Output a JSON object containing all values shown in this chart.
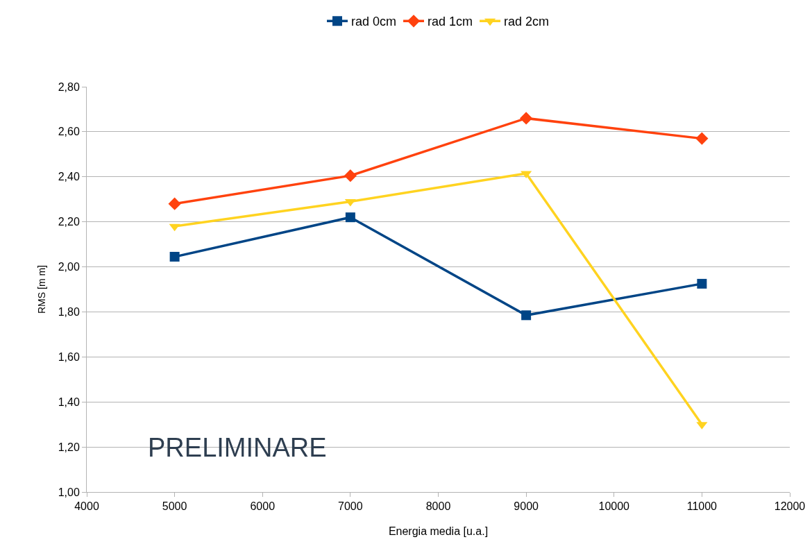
{
  "chart_data": {
    "type": "line",
    "xlabel": "Energia media [u.a.]",
    "ylabel": "RMS [m m]",
    "x": [
      5000,
      7000,
      9000,
      11000
    ],
    "series": [
      {
        "name": "rad 0cm",
        "color": "#004586",
        "marker": "square",
        "values": [
          2.045,
          2.22,
          1.785,
          1.925
        ]
      },
      {
        "name": "rad 1cm",
        "color": "#ff420e",
        "marker": "diamond",
        "values": [
          2.28,
          2.405,
          2.66,
          2.57
        ]
      },
      {
        "name": "rad 2cm",
        "color": "#ffd320",
        "marker": "triangle",
        "values": [
          2.18,
          2.29,
          2.415,
          1.3
        ]
      }
    ],
    "xlim": [
      4000,
      12000
    ],
    "xticks": [
      4000,
      5000,
      6000,
      7000,
      8000,
      9000,
      10000,
      11000,
      12000
    ],
    "ylim": [
      1.0,
      2.8
    ],
    "yticks": [
      {
        "value": 1.0,
        "label": "1,00"
      },
      {
        "value": 1.2,
        "label": "1,20"
      },
      {
        "value": 1.4,
        "label": "1,40"
      },
      {
        "value": 1.6,
        "label": "1,60"
      },
      {
        "value": 1.8,
        "label": "1,80"
      },
      {
        "value": 2.0,
        "label": "2,00"
      },
      {
        "value": 2.2,
        "label": "2,20"
      },
      {
        "value": 2.4,
        "label": "2,40"
      },
      {
        "value": 2.6,
        "label": "2,60"
      },
      {
        "value": 2.8,
        "label": "2,80"
      }
    ],
    "grid": "y",
    "legend": "top",
    "line_style": "solid",
    "annotations": [
      "PRELIMINARE"
    ]
  }
}
